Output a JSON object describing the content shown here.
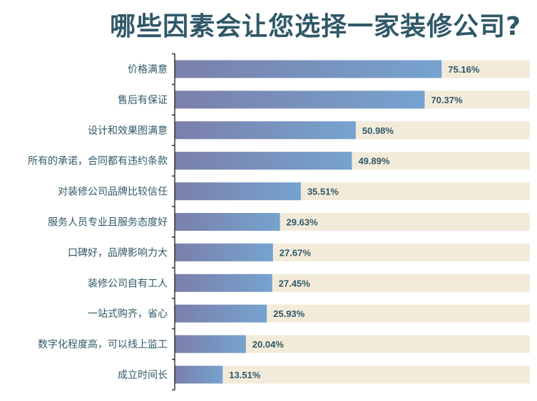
{
  "chart_data": {
    "type": "bar",
    "orientation": "horizontal",
    "title": "哪些因素会让您选择一家装修公司?",
    "categories": [
      "价格满意",
      "售后有保证",
      "设计和效果图满意",
      "所有的承诺，合同都有违约条款",
      "对装修公司品牌比较信任",
      "服务人员专业且服务态度好",
      "口碑好，品牌影响力大",
      "装修公司自有工人",
      "一站式购齐，省心",
      "数字化程度高，可以线上监工",
      "成立时间长"
    ],
    "values": [
      75.16,
      70.37,
      50.98,
      49.89,
      35.51,
      29.63,
      27.67,
      27.45,
      25.93,
      20.04,
      13.51
    ],
    "value_labels": [
      "75.16%",
      "70.37%",
      "50.98%",
      "49.89%",
      "35.51%",
      "29.63%",
      "27.67%",
      "27.45%",
      "25.93%",
      "20.04%",
      "13.51%"
    ],
    "xlim": [
      0,
      100
    ],
    "grid": false,
    "legend": "none",
    "colors": {
      "bar_start": "#7b7fab",
      "bar_end": "#76a3cf",
      "track": "#f3ebda",
      "label": "#2f5868",
      "title": "#2f5868",
      "axis": "#333333"
    }
  }
}
